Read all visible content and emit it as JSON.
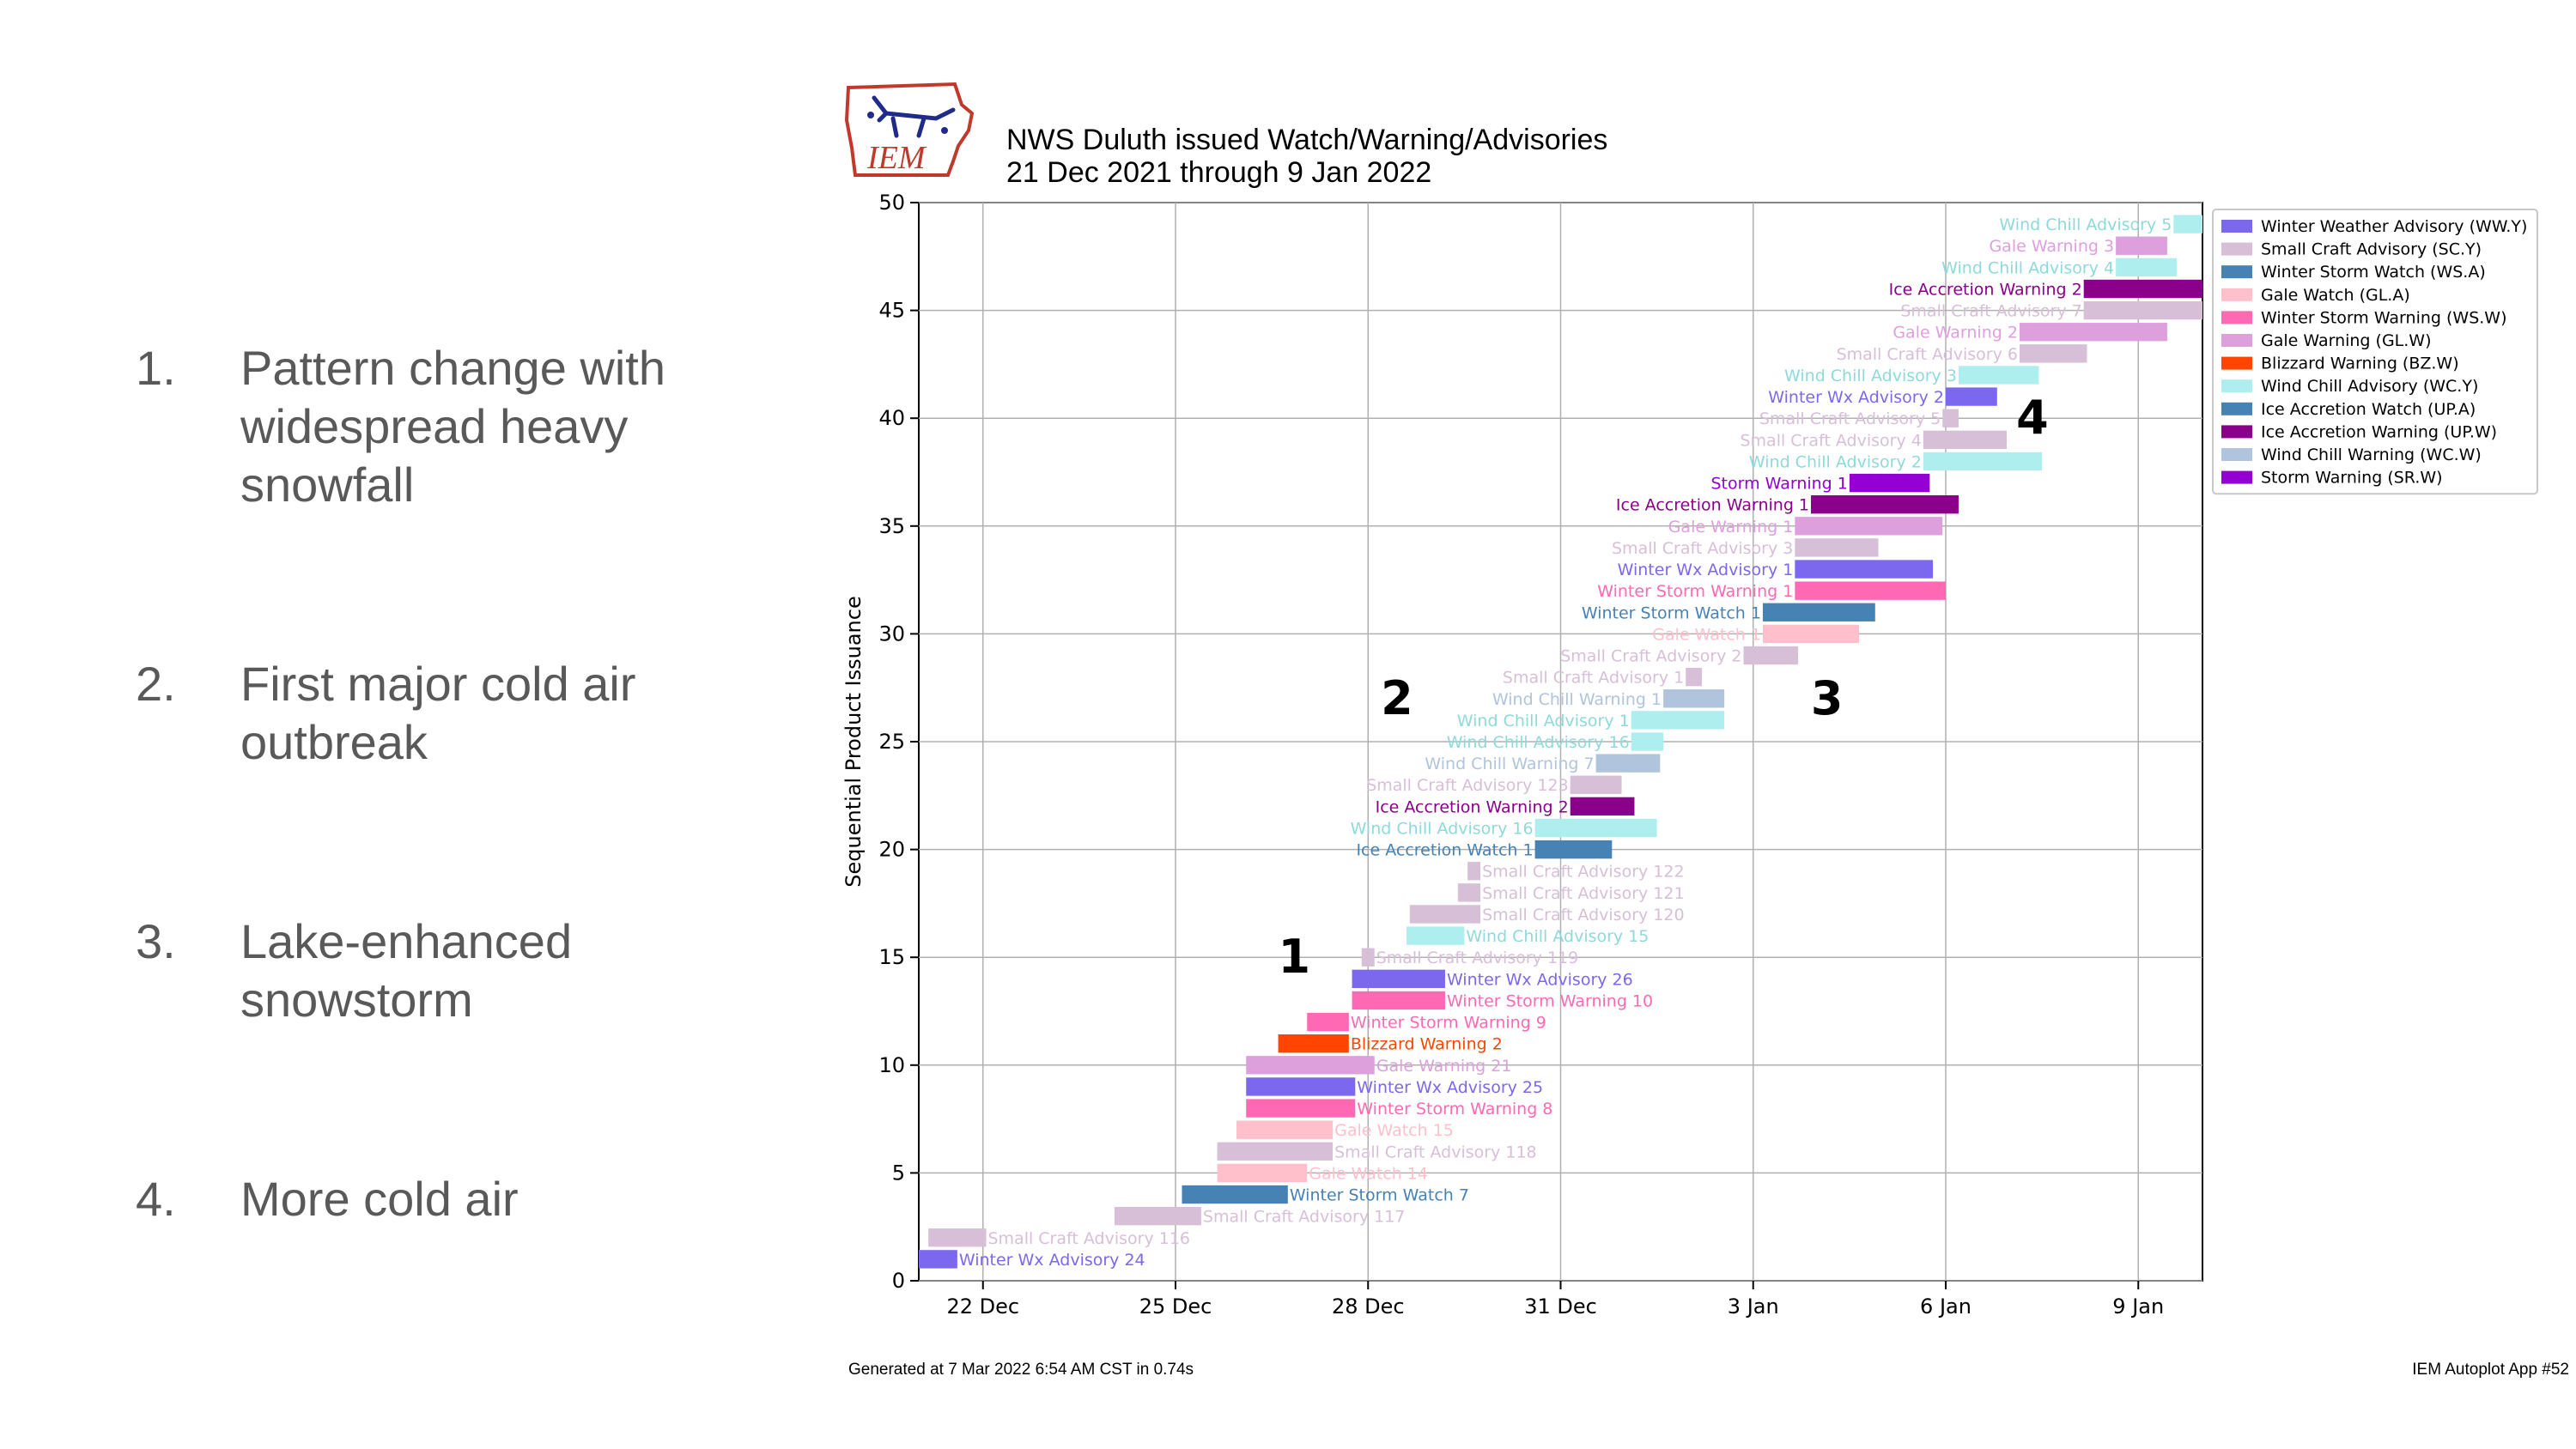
{
  "slide": {
    "items": [
      {
        "num": "1.",
        "text": "Pattern change with widespread heavy snowfall"
      },
      {
        "num": "2.",
        "text": "First major cold air outbreak"
      },
      {
        "num": "3.",
        "text": "Lake-enhanced snowstorm"
      },
      {
        "num": "4.",
        "text": "More cold air"
      }
    ]
  },
  "logo": {
    "text": "IEM",
    "icon": "iowa-state-outline-icon"
  },
  "footer": {
    "generated": "Generated at 7 Mar 2022 6:54 AM CST in 0.74s",
    "app": "IEM Autoplot App #52"
  },
  "chart_data": {
    "type": "gantt",
    "title": "NWS Duluth issued Watch/Warning/Advisories",
    "subtitle": "21 Dec 2021 through 9 Jan 2022",
    "ylabel": "Sequential Product Issuance",
    "xlabel": "",
    "ylim": [
      0,
      50
    ],
    "yticks": [
      0,
      5,
      10,
      15,
      20,
      25,
      30,
      35,
      40,
      45,
      50
    ],
    "xlim": [
      "2021-12-21",
      "2022-01-10"
    ],
    "xticks": [
      {
        "date": "2021-12-22",
        "label": "22 Dec"
      },
      {
        "date": "2021-12-25",
        "label": "25 Dec"
      },
      {
        "date": "2021-12-28",
        "label": "28 Dec"
      },
      {
        "date": "2021-12-31",
        "label": "31 Dec"
      },
      {
        "date": "2022-01-03",
        "label": "3 Jan"
      },
      {
        "date": "2022-01-06",
        "label": "6 Jan"
      },
      {
        "date": "2022-01-09",
        "label": "9 Jan"
      }
    ],
    "grid": true,
    "legend_position": "upper right, outside plot",
    "legend": [
      {
        "code": "WW.Y",
        "label": "Winter Weather Advisory (WW.Y)",
        "color": "#7B68EE"
      },
      {
        "code": "SC.Y",
        "label": "Small Craft Advisory (SC.Y)",
        "color": "#D8BFD8"
      },
      {
        "code": "WS.A",
        "label": "Winter Storm Watch (WS.A)",
        "color": "#4682B4"
      },
      {
        "code": "GL.A",
        "label": "Gale Watch (GL.A)",
        "color": "#FFC0CB"
      },
      {
        "code": "WS.W",
        "label": "Winter Storm Warning (WS.W)",
        "color": "#FF69B4"
      },
      {
        "code": "GL.W",
        "label": "Gale Warning (GL.W)",
        "color": "#DDA0DD"
      },
      {
        "code": "BZ.W",
        "label": "Blizzard Warning (BZ.W)",
        "color": "#FF4500"
      },
      {
        "code": "WC.Y",
        "label": "Wind Chill Advisory (WC.Y)",
        "color": "#AFEEEE"
      },
      {
        "code": "UP.A",
        "label": "Ice Accretion Watch (UP.A)",
        "color": "#4682B4"
      },
      {
        "code": "UP.W",
        "label": "Ice Accretion Warning (UP.W)",
        "color": "#8B008B"
      },
      {
        "code": "WC.W",
        "label": "Wind Chill Warning (WC.W)",
        "color": "#B0C4DE"
      },
      {
        "code": "SR.W",
        "label": "Storm Warning (SR.W)",
        "color": "#9400D3"
      }
    ],
    "bars": [
      {
        "y": 1,
        "code": "WW.Y",
        "label": "Winter Wx Advisory 24",
        "start": "2021-12-21.0",
        "end": "2021-12-21.6",
        "side": "right"
      },
      {
        "y": 2,
        "code": "SC.Y",
        "label": "Small Craft Advisory 116",
        "start": "2021-12-21.15",
        "end": "2021-12-22.05",
        "side": "right"
      },
      {
        "y": 3,
        "code": "SC.Y",
        "label": "Small Craft Advisory 117",
        "start": "2021-12-24.05",
        "end": "2021-12-25.4",
        "side": "right"
      },
      {
        "y": 4,
        "code": "WS.A",
        "label": "Winter Storm Watch 7",
        "start": "2021-12-25.1",
        "end": "2021-12-26.75",
        "side": "right"
      },
      {
        "y": 5,
        "code": "GL.A",
        "label": "Gale Watch 14",
        "start": "2021-12-25.65",
        "end": "2021-12-27.05",
        "side": "right"
      },
      {
        "y": 6,
        "code": "SC.Y",
        "label": "Small Craft Advisory 118",
        "start": "2021-12-25.65",
        "end": "2021-12-27.45",
        "side": "right"
      },
      {
        "y": 7,
        "code": "GL.A",
        "label": "Gale Watch 15",
        "start": "2021-12-25.95",
        "end": "2021-12-27.45",
        "side": "right"
      },
      {
        "y": 8,
        "code": "WS.W",
        "label": "Winter Storm Warning 8",
        "start": "2021-12-26.1",
        "end": "2021-12-27.8",
        "side": "right"
      },
      {
        "y": 9,
        "code": "WW.Y",
        "label": "Winter Wx Advisory 25",
        "start": "2021-12-26.1",
        "end": "2021-12-27.8",
        "side": "right"
      },
      {
        "y": 10,
        "code": "GL.W",
        "label": "Gale Warning 21",
        "start": "2021-12-26.1",
        "end": "2021-12-28.1",
        "side": "right"
      },
      {
        "y": 11,
        "code": "BZ.W",
        "label": "Blizzard Warning 2",
        "start": "2021-12-26.6",
        "end": "2021-12-27.7",
        "side": "right"
      },
      {
        "y": 12,
        "code": "WS.W",
        "label": "Winter Storm Warning 9",
        "start": "2021-12-27.05",
        "end": "2021-12-27.7",
        "side": "right"
      },
      {
        "y": 13,
        "code": "WS.W",
        "label": "Winter Storm Warning 10",
        "start": "2021-12-27.75",
        "end": "2021-12-29.2",
        "side": "right"
      },
      {
        "y": 14,
        "code": "WW.Y",
        "label": "Winter Wx Advisory 26",
        "start": "2021-12-27.75",
        "end": "2021-12-29.2",
        "side": "right"
      },
      {
        "y": 15,
        "code": "SC.Y",
        "label": "Small Craft Advisory 119",
        "start": "2021-12-27.9",
        "end": "2021-12-28.1",
        "side": "right"
      },
      {
        "y": 16,
        "code": "WC.Y",
        "label": "Wind Chill Advisory 15",
        "start": "2021-12-28.6",
        "end": "2021-12-29.5",
        "side": "right"
      },
      {
        "y": 17,
        "code": "SC.Y",
        "label": "Small Craft Advisory 120",
        "start": "2021-12-28.65",
        "end": "2021-12-29.75",
        "side": "right"
      },
      {
        "y": 18,
        "code": "SC.Y",
        "label": "Small Craft Advisory 121",
        "start": "2021-12-29.4",
        "end": "2021-12-29.75",
        "side": "right"
      },
      {
        "y": 19,
        "code": "SC.Y",
        "label": "Small Craft Advisory 122",
        "start": "2021-12-29.55",
        "end": "2021-12-29.75",
        "side": "right"
      },
      {
        "y": 20,
        "code": "UP.A",
        "label": "Ice Accretion Watch 1",
        "start": "2021-12-30.6",
        "end": "2021-12-31.8",
        "side": "left"
      },
      {
        "y": 21,
        "code": "WC.Y",
        "label": "Wind Chill Advisory 16",
        "start": "2021-12-30.6",
        "end": "2022-01-01.5",
        "side": "left"
      },
      {
        "y": 22,
        "code": "UP.W",
        "label": "Ice Accretion Warning 2",
        "start": "2021-12-31.15",
        "end": "2022-01-01.15",
        "side": "left"
      },
      {
        "y": 23,
        "code": "SC.Y",
        "label": "Small Craft Advisory 123",
        "start": "2021-12-31.15",
        "end": "2021-12-31.95",
        "side": "left"
      },
      {
        "y": 24,
        "code": "WC.W",
        "label": "Wind Chill Warning 7",
        "start": "2021-12-31.55",
        "end": "2022-01-01.55",
        "side": "left"
      },
      {
        "y": 25,
        "code": "WC.Y",
        "label": "Wind Chill Advisory 16",
        "start": "2022-01-01.1",
        "end": "2022-01-01.6",
        "side": "left"
      },
      {
        "y": 26,
        "code": "WC.Y",
        "label": "Wind Chill Advisory 1",
        "start": "2022-01-01.1",
        "end": "2022-01-02.55",
        "side": "left"
      },
      {
        "y": 27,
        "code": "WC.W",
        "label": "Wind Chill Warning 1",
        "start": "2022-01-01.6",
        "end": "2022-01-02.55",
        "side": "left"
      },
      {
        "y": 28,
        "code": "SC.Y",
        "label": "Small Craft Advisory 1",
        "start": "2022-01-01.95",
        "end": "2022-01-02.2",
        "side": "left"
      },
      {
        "y": 29,
        "code": "SC.Y",
        "label": "Small Craft Advisory 2",
        "start": "2022-01-02.85",
        "end": "2022-01-03.7",
        "side": "left"
      },
      {
        "y": 30,
        "code": "GL.A",
        "label": "Gale Watch 1",
        "start": "2022-01-03.15",
        "end": "2022-01-04.65",
        "side": "left"
      },
      {
        "y": 31,
        "code": "WS.A",
        "label": "Winter Storm Watch 1",
        "start": "2022-01-03.15",
        "end": "2022-01-04.9",
        "side": "left"
      },
      {
        "y": 32,
        "code": "WS.W",
        "label": "Winter Storm Warning 1",
        "start": "2022-01-03.65",
        "end": "2022-01-06.0",
        "side": "left"
      },
      {
        "y": 33,
        "code": "WW.Y",
        "label": "Winter Wx Advisory 1",
        "start": "2022-01-03.65",
        "end": "2022-01-05.8",
        "side": "left"
      },
      {
        "y": 34,
        "code": "SC.Y",
        "label": "Small Craft Advisory 3",
        "start": "2022-01-03.65",
        "end": "2022-01-04.95",
        "side": "left"
      },
      {
        "y": 35,
        "code": "GL.W",
        "label": "Gale Warning 1",
        "start": "2022-01-03.65",
        "end": "2022-01-05.95",
        "side": "left"
      },
      {
        "y": 36,
        "code": "UP.W",
        "label": "Ice Accretion Warning 1",
        "start": "2022-01-03.9",
        "end": "2022-01-06.2",
        "side": "left"
      },
      {
        "y": 37,
        "code": "SR.W",
        "label": "Storm Warning 1",
        "start": "2022-01-04.5",
        "end": "2022-01-05.75",
        "side": "left"
      },
      {
        "y": 38,
        "code": "WC.Y",
        "label": "Wind Chill Advisory 2",
        "start": "2022-01-05.65",
        "end": "2022-01-07.5",
        "side": "left"
      },
      {
        "y": 39,
        "code": "SC.Y",
        "label": "Small Craft Advisory 4",
        "start": "2022-01-05.65",
        "end": "2022-01-06.95",
        "side": "left"
      },
      {
        "y": 40,
        "code": "SC.Y",
        "label": "Small Craft Advisory 5",
        "start": "2022-01-05.95",
        "end": "2022-01-06.2",
        "side": "left"
      },
      {
        "y": 41,
        "code": "WW.Y",
        "label": "Winter Wx Advisory 2",
        "start": "2022-01-06.0",
        "end": "2022-01-06.8",
        "side": "left"
      },
      {
        "y": 42,
        "code": "WC.Y",
        "label": "Wind Chill Advisory 3",
        "start": "2022-01-06.2",
        "end": "2022-01-07.45",
        "side": "left"
      },
      {
        "y": 43,
        "code": "SC.Y",
        "label": "Small Craft Advisory 6",
        "start": "2022-01-07.15",
        "end": "2022-01-08.2",
        "side": "left"
      },
      {
        "y": 44,
        "code": "GL.W",
        "label": "Gale Warning 2",
        "start": "2022-01-07.15",
        "end": "2022-01-09.45",
        "side": "left"
      },
      {
        "y": 45,
        "code": "SC.Y",
        "label": "Small Craft Advisory 7",
        "start": "2022-01-08.15",
        "end": "2022-01-10.0",
        "side": "left"
      },
      {
        "y": 46,
        "code": "UP.W",
        "label": "Ice Accretion Warning 2",
        "start": "2022-01-08.15",
        "end": "2022-01-10.0",
        "side": "left"
      },
      {
        "y": 47,
        "code": "WC.Y",
        "label": "Wind Chill Advisory 4",
        "start": "2022-01-08.65",
        "end": "2022-01-09.6",
        "side": "left"
      },
      {
        "y": 48,
        "code": "GL.W",
        "label": "Gale Warning 3",
        "start": "2022-01-08.65",
        "end": "2022-01-09.45",
        "side": "left"
      },
      {
        "y": 49,
        "code": "WC.Y",
        "label": "Wind Chill Advisory 5",
        "start": "2022-01-09.55",
        "end": "2022-01-10.0",
        "side": "left"
      }
    ],
    "annotations": [
      {
        "text": "1",
        "x": "2021-12-26.85",
        "y": 15
      },
      {
        "text": "2",
        "x": "2021-12-28.45",
        "y": 27
      },
      {
        "text": "3",
        "x": "2022-01-04.15",
        "y": 27
      },
      {
        "text": "4",
        "x": "2022-01-07.35",
        "y": 40
      }
    ]
  }
}
